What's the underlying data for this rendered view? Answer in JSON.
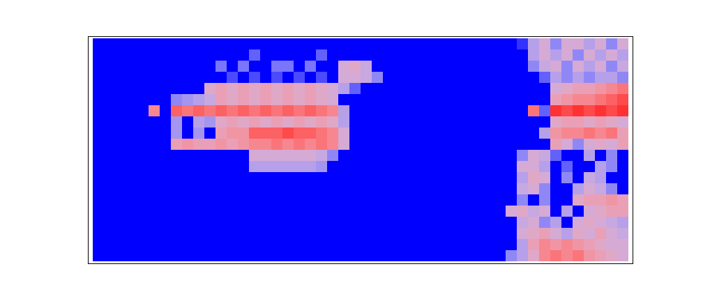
{
  "chart_data": {
    "type": "heatmap",
    "tick_labels": false,
    "color_range": [
      0,
      1
    ],
    "cells": [
      [
        0,
        0,
        0,
        0,
        0,
        0,
        0,
        0,
        0,
        0,
        0,
        0,
        0,
        0,
        0,
        0,
        0,
        0,
        0,
        0,
        0,
        0,
        0,
        0,
        0,
        0,
        0,
        0,
        0,
        0,
        0,
        0,
        0,
        0,
        0,
        0,
        0,
        0,
        0.1,
        0.4,
        0.5,
        0.3,
        0.5,
        0.5,
        0.4,
        0.5,
        0.3,
        0.5
      ],
      [
        0,
        0,
        0,
        0,
        0,
        0,
        0,
        0,
        0,
        0,
        0,
        0,
        0,
        0,
        0.2,
        0,
        0,
        0,
        0,
        0,
        0.2,
        0,
        0,
        0,
        0,
        0,
        0,
        0,
        0,
        0,
        0,
        0,
        0,
        0,
        0,
        0,
        0,
        0,
        0,
        0.4,
        0.5,
        0.4,
        0.5,
        0.3,
        0.5,
        0.4,
        0.5,
        0.4
      ],
      [
        0,
        0,
        0,
        0,
        0,
        0,
        0,
        0,
        0,
        0,
        0,
        0.25,
        0,
        0.25,
        0,
        0,
        0.25,
        0.25,
        0,
        0.25,
        0,
        0,
        0.5,
        0.55,
        0.45,
        0,
        0,
        0,
        0,
        0,
        0,
        0,
        0,
        0,
        0,
        0,
        0,
        0,
        0,
        0.3,
        0.45,
        0.5,
        0.3,
        0.5,
        0.4,
        0.5,
        0.3,
        0.45
      ],
      [
        0,
        0,
        0,
        0,
        0,
        0,
        0,
        0,
        0,
        0,
        0,
        0,
        0.15,
        0,
        0.15,
        0,
        0.15,
        0,
        0.15,
        0,
        0.15,
        0,
        0.5,
        0.5,
        0.45,
        0.3,
        0,
        0,
        0,
        0,
        0,
        0,
        0,
        0,
        0,
        0,
        0,
        0,
        0,
        0,
        0.2,
        0.4,
        0.3,
        0.4,
        0.3,
        0.4,
        0.4,
        0.3
      ],
      [
        0,
        0,
        0,
        0,
        0,
        0,
        0,
        0,
        0,
        0,
        0.55,
        0.6,
        0.55,
        0.6,
        0.55,
        0.6,
        0.55,
        0.6,
        0.55,
        0.6,
        0.55,
        0.5,
        0.4,
        0.2,
        0,
        0,
        0,
        0,
        0,
        0,
        0,
        0,
        0,
        0,
        0,
        0,
        0,
        0,
        0,
        0,
        0,
        0.5,
        0.55,
        0.6,
        0.6,
        0.65,
        0.7,
        0.75
      ],
      [
        0,
        0,
        0,
        0,
        0,
        0,
        0,
        0.3,
        0.35,
        0.4,
        0.45,
        0.6,
        0.55,
        0.6,
        0.55,
        0.6,
        0.55,
        0.6,
        0.55,
        0.6,
        0.55,
        0.5,
        0,
        0,
        0,
        0,
        0,
        0,
        0,
        0,
        0,
        0,
        0,
        0,
        0,
        0,
        0,
        0,
        0,
        0,
        0,
        0.6,
        0.65,
        0.7,
        0.7,
        0.75,
        0.8,
        0.85
      ],
      [
        0,
        0,
        0,
        0,
        0,
        0.7,
        0,
        0.8,
        0.75,
        0.8,
        0.75,
        0.8,
        0.75,
        0.8,
        0.75,
        0.8,
        0.75,
        0.8,
        0.75,
        0.8,
        0.75,
        0.7,
        0.4,
        0,
        0,
        0,
        0,
        0,
        0,
        0,
        0,
        0,
        0,
        0,
        0,
        0,
        0,
        0,
        0,
        0.75,
        0.2,
        0.9,
        0.85,
        0.9,
        0.85,
        0.9,
        0.85,
        0.9
      ],
      [
        0,
        0,
        0,
        0,
        0,
        0,
        0,
        0.35,
        0,
        0.4,
        0.35,
        0.55,
        0.6,
        0.55,
        0.6,
        0.55,
        0.6,
        0.55,
        0.6,
        0.55,
        0.6,
        0.55,
        0.4,
        0,
        0,
        0,
        0,
        0,
        0,
        0,
        0,
        0,
        0,
        0,
        0,
        0,
        0,
        0,
        0,
        0,
        0,
        0.55,
        0.6,
        0.6,
        0.55,
        0.6,
        0.55,
        0.5
      ],
      [
        0,
        0,
        0,
        0,
        0,
        0,
        0,
        0.35,
        0,
        0.35,
        0,
        0.6,
        0.65,
        0.65,
        0.8,
        0.8,
        0.8,
        0.85,
        0.8,
        0.8,
        0.75,
        0.7,
        0.5,
        0,
        0,
        0,
        0,
        0,
        0,
        0,
        0,
        0,
        0,
        0,
        0,
        0,
        0,
        0,
        0,
        0,
        0.4,
        0.65,
        0.7,
        0.7,
        0.75,
        0.7,
        0.75,
        0.6
      ],
      [
        0,
        0,
        0,
        0,
        0,
        0,
        0,
        0.6,
        0.65,
        0.6,
        0.6,
        0.65,
        0.6,
        0.65,
        0.7,
        0.7,
        0.75,
        0.7,
        0.75,
        0.7,
        0.75,
        0.7,
        0.5,
        0,
        0,
        0,
        0,
        0,
        0,
        0,
        0,
        0,
        0,
        0,
        0,
        0,
        0,
        0,
        0,
        0,
        0,
        0.6,
        0.5,
        0.3,
        0.5,
        0.55,
        0.5,
        0.6
      ],
      [
        0,
        0,
        0,
        0,
        0,
        0,
        0,
        0,
        0,
        0,
        0,
        0,
        0,
        0,
        0.5,
        0.5,
        0.5,
        0.5,
        0.5,
        0.5,
        0.45,
        0.3,
        0,
        0,
        0,
        0,
        0,
        0,
        0,
        0,
        0,
        0,
        0,
        0,
        0,
        0,
        0,
        0,
        0.3,
        0.5,
        0.45,
        0.2,
        0,
        0,
        0.4,
        0,
        0.3,
        0
      ],
      [
        0,
        0,
        0,
        0,
        0,
        0,
        0,
        0,
        0,
        0,
        0,
        0,
        0,
        0,
        0.4,
        0.4,
        0.4,
        0.4,
        0.4,
        0.4,
        0.35,
        0,
        0,
        0,
        0,
        0,
        0,
        0,
        0,
        0,
        0,
        0,
        0,
        0,
        0,
        0,
        0,
        0,
        0.5,
        0.5,
        0.4,
        0,
        0.2,
        0,
        0,
        0.4,
        0.3,
        0
      ],
      [
        0,
        0,
        0,
        0,
        0,
        0,
        0,
        0,
        0,
        0,
        0,
        0,
        0,
        0,
        0,
        0,
        0,
        0,
        0,
        0,
        0,
        0,
        0,
        0,
        0,
        0,
        0,
        0,
        0,
        0,
        0,
        0,
        0,
        0,
        0,
        0,
        0,
        0,
        0.4,
        0.55,
        0.5,
        0,
        0.3,
        0,
        0.45,
        0.4,
        0,
        0
      ],
      [
        0,
        0,
        0,
        0,
        0,
        0,
        0,
        0,
        0,
        0,
        0,
        0,
        0,
        0,
        0,
        0,
        0,
        0,
        0,
        0,
        0,
        0,
        0,
        0,
        0,
        0,
        0,
        0,
        0,
        0,
        0,
        0,
        0,
        0,
        0,
        0,
        0,
        0,
        0.45,
        0.5,
        0.3,
        0,
        0,
        0.4,
        0.5,
        0.45,
        0.3,
        0
      ],
      [
        0,
        0,
        0,
        0,
        0,
        0,
        0,
        0,
        0,
        0,
        0,
        0,
        0,
        0,
        0,
        0,
        0,
        0,
        0,
        0,
        0,
        0,
        0,
        0,
        0,
        0,
        0,
        0,
        0,
        0,
        0,
        0,
        0,
        0,
        0,
        0,
        0,
        0,
        0.3,
        0,
        0.3,
        0,
        0,
        0.55,
        0.6,
        0.6,
        0.65,
        0.6
      ],
      [
        0,
        0,
        0,
        0,
        0,
        0,
        0,
        0,
        0,
        0,
        0,
        0,
        0,
        0,
        0,
        0,
        0,
        0,
        0,
        0,
        0,
        0,
        0,
        0,
        0,
        0,
        0,
        0,
        0,
        0,
        0,
        0,
        0,
        0,
        0,
        0,
        0,
        0.5,
        0.55,
        0.45,
        0.5,
        0,
        0.4,
        0,
        0.5,
        0.55,
        0.6,
        0.6
      ],
      [
        0,
        0,
        0,
        0,
        0,
        0,
        0,
        0,
        0,
        0,
        0,
        0,
        0,
        0,
        0,
        0,
        0,
        0,
        0,
        0,
        0,
        0,
        0,
        0,
        0,
        0,
        0,
        0,
        0,
        0,
        0,
        0,
        0,
        0,
        0,
        0,
        0,
        0,
        0.45,
        0.5,
        0.3,
        0.4,
        0,
        0.5,
        0.55,
        0.5,
        0.45,
        0.4
      ],
      [
        0,
        0,
        0,
        0,
        0,
        0,
        0,
        0,
        0,
        0,
        0,
        0,
        0,
        0,
        0,
        0,
        0,
        0,
        0,
        0,
        0,
        0,
        0,
        0,
        0,
        0,
        0,
        0,
        0,
        0,
        0,
        0,
        0,
        0,
        0,
        0,
        0,
        0,
        0.5,
        0.55,
        0.6,
        0.5,
        0.4,
        0.55,
        0.5,
        0.6,
        0.5,
        0.45
      ],
      [
        0,
        0,
        0,
        0,
        0,
        0,
        0,
        0,
        0,
        0,
        0,
        0,
        0,
        0,
        0,
        0,
        0,
        0,
        0,
        0,
        0,
        0,
        0,
        0,
        0,
        0,
        0,
        0,
        0,
        0,
        0,
        0,
        0,
        0,
        0,
        0,
        0,
        0,
        0.4,
        0.6,
        0.7,
        0.65,
        0.7,
        0.65,
        0.6,
        0.55,
        0.5,
        0.5
      ],
      [
        0,
        0,
        0,
        0,
        0,
        0,
        0,
        0,
        0,
        0,
        0,
        0,
        0,
        0,
        0,
        0,
        0,
        0,
        0,
        0,
        0,
        0,
        0,
        0,
        0,
        0,
        0,
        0,
        0,
        0,
        0,
        0,
        0,
        0,
        0,
        0,
        0,
        0.3,
        0.4,
        0.55,
        0.7,
        0.75,
        0.7,
        0.75,
        0.65,
        0.6,
        0.55,
        0.5
      ]
    ]
  }
}
